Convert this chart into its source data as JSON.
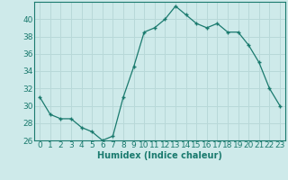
{
  "x": [
    0,
    1,
    2,
    3,
    4,
    5,
    6,
    7,
    8,
    9,
    10,
    11,
    12,
    13,
    14,
    15,
    16,
    17,
    18,
    19,
    20,
    21,
    22,
    23
  ],
  "y": [
    31,
    29,
    28.5,
    28.5,
    27.5,
    27,
    26,
    26.5,
    31,
    34.5,
    38.5,
    39,
    40,
    41.5,
    40.5,
    39.5,
    39,
    39.5,
    38.5,
    38.5,
    37,
    35,
    32,
    30
  ],
  "line_color": "#1a7a6e",
  "marker": "+",
  "marker_size": 3.5,
  "bg_color": "#ceeaea",
  "grid_color": "#b8d8d8",
  "xlabel": "Humidex (Indice chaleur)",
  "ylim": [
    26,
    42
  ],
  "xlim": [
    -0.5,
    23.5
  ],
  "yticks": [
    26,
    28,
    30,
    32,
    34,
    36,
    38,
    40
  ],
  "xticks": [
    0,
    1,
    2,
    3,
    4,
    5,
    6,
    7,
    8,
    9,
    10,
    11,
    12,
    13,
    14,
    15,
    16,
    17,
    18,
    19,
    20,
    21,
    22,
    23
  ],
  "label_fontsize": 7,
  "tick_fontsize": 6.5
}
